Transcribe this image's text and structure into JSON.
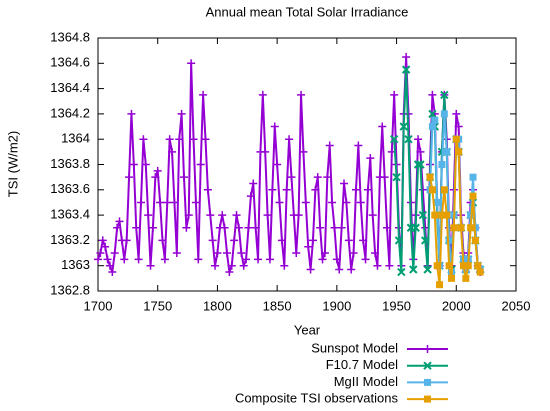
{
  "chart_data": {
    "type": "line",
    "title": "Annual mean Total Solar Irradiance",
    "xlabel": "Year",
    "ylabel": "TSI (W/m2)",
    "xlim": [
      1700,
      2050
    ],
    "xticks": [
      1700,
      1750,
      1800,
      1850,
      1900,
      1950,
      2000,
      2050
    ],
    "ylim": [
      1362.8,
      1364.8
    ],
    "yticks": [
      1362.8,
      1363,
      1363.2,
      1363.4,
      1363.6,
      1363.8,
      1364,
      1364.2,
      1364.4,
      1364.6,
      1364.8
    ],
    "grid": false,
    "series": [
      {
        "name": "Sunspot Model",
        "color": "#9400d3",
        "marker": "plus",
        "x": [
          1700,
          1702,
          1704,
          1706,
          1708,
          1710,
          1712,
          1714,
          1716,
          1718,
          1720,
          1722,
          1724,
          1726,
          1728,
          1730,
          1732,
          1734,
          1736,
          1738,
          1740,
          1742,
          1744,
          1746,
          1748,
          1750,
          1752,
          1754,
          1756,
          1758,
          1760,
          1762,
          1764,
          1766,
          1768,
          1770,
          1772,
          1774,
          1776,
          1778,
          1780,
          1782,
          1784,
          1786,
          1788,
          1790,
          1792,
          1794,
          1796,
          1798,
          1800,
          1802,
          1804,
          1806,
          1808,
          1810,
          1812,
          1814,
          1816,
          1818,
          1820,
          1822,
          1824,
          1826,
          1828,
          1830,
          1832,
          1834,
          1836,
          1838,
          1840,
          1842,
          1844,
          1846,
          1848,
          1850,
          1852,
          1854,
          1856,
          1858,
          1860,
          1862,
          1864,
          1866,
          1868,
          1870,
          1872,
          1874,
          1876,
          1878,
          1880,
          1882,
          1884,
          1886,
          1888,
          1890,
          1892,
          1894,
          1896,
          1898,
          1900,
          1902,
          1904,
          1906,
          1908,
          1910,
          1912,
          1914,
          1916,
          1918,
          1920,
          1922,
          1924,
          1926,
          1928,
          1930,
          1932,
          1934,
          1936,
          1938,
          1940,
          1942,
          1944,
          1946,
          1948,
          1950,
          1952,
          1954,
          1956,
          1958,
          1960,
          1962,
          1964,
          1966,
          1968,
          1970,
          1972,
          1974,
          1976,
          1978,
          1980,
          1982,
          1984,
          1986,
          1988,
          1990,
          1992,
          1994,
          1996,
          1998,
          2000,
          2002,
          2004,
          2006,
          2008,
          2010,
          2012,
          2014,
          2016,
          2018,
          2020
        ],
        "values": [
          1363.05,
          1363.1,
          1363.2,
          1363.15,
          1363.05,
          1363.0,
          1362.95,
          1363.1,
          1363.3,
          1363.35,
          1363.2,
          1363.05,
          1363.2,
          1363.7,
          1364.2,
          1363.8,
          1363.3,
          1363.05,
          1363.5,
          1364.0,
          1363.8,
          1363.4,
          1363.0,
          1363.3,
          1363.7,
          1363.75,
          1363.5,
          1363.2,
          1363.05,
          1363.5,
          1364.0,
          1363.9,
          1363.5,
          1363.1,
          1364.0,
          1364.2,
          1363.7,
          1363.3,
          1363.4,
          1364.6,
          1364.0,
          1363.5,
          1363.05,
          1363.8,
          1364.35,
          1364.0,
          1363.6,
          1363.4,
          1363.2,
          1363.0,
          1363.1,
          1363.3,
          1363.4,
          1363.3,
          1363.1,
          1362.95,
          1363.0,
          1363.2,
          1363.4,
          1363.3,
          1363.1,
          1363.0,
          1363.05,
          1363.3,
          1363.55,
          1363.65,
          1363.3,
          1363.05,
          1363.9,
          1364.35,
          1363.9,
          1363.4,
          1363.05,
          1363.6,
          1364.1,
          1363.8,
          1363.5,
          1363.2,
          1363.0,
          1363.6,
          1364.0,
          1363.7,
          1363.4,
          1363.1,
          1363.4,
          1364.35,
          1363.9,
          1363.5,
          1363.15,
          1362.97,
          1363.2,
          1363.6,
          1363.7,
          1363.3,
          1363.05,
          1363.1,
          1363.7,
          1363.95,
          1363.5,
          1363.3,
          1363.05,
          1362.97,
          1363.3,
          1363.65,
          1363.5,
          1363.2,
          1362.97,
          1363.1,
          1363.6,
          1363.95,
          1363.5,
          1363.2,
          1363.05,
          1363.6,
          1363.85,
          1363.4,
          1363.1,
          1363.0,
          1363.7,
          1364.1,
          1363.7,
          1363.3,
          1363.0,
          1363.9,
          1364.35,
          1363.8,
          1363.3,
          1363.0,
          1364.2,
          1364.65,
          1364.2,
          1363.5,
          1363.05,
          1363.4,
          1364.0,
          1363.9,
          1363.6,
          1363.3,
          1363.0,
          1363.8,
          1364.35,
          1364.2,
          1363.5,
          1363.0,
          1363.9,
          1364.35,
          1364.0,
          1363.3,
          1363.0,
          1363.6,
          1364.2,
          1364.1,
          1363.4,
          1363.1,
          1362.95,
          1363.1,
          1363.5,
          1363.6,
          1363.3,
          1363.0,
          1362.95
        ]
      },
      {
        "name": "F10.7 Model",
        "color": "#009e73",
        "marker": "cross",
        "x": [
          1948,
          1950,
          1952,
          1954,
          1956,
          1958,
          1960,
          1962,
          1964,
          1966,
          1968,
          1970,
          1972,
          1974,
          1976,
          1978,
          1980,
          1982,
          1984,
          1986,
          1988,
          1990,
          1992,
          1994,
          1996,
          1998,
          2000,
          2002,
          2004,
          2006,
          2008,
          2010,
          2012,
          2014,
          2016,
          2018,
          2020
        ],
        "values": [
          1364.0,
          1363.7,
          1363.2,
          1362.95,
          1364.1,
          1364.55,
          1364.0,
          1363.3,
          1362.97,
          1363.3,
          1363.8,
          1363.8,
          1363.4,
          1363.2,
          1362.97,
          1363.7,
          1364.2,
          1364.1,
          1363.4,
          1363.0,
          1363.9,
          1364.35,
          1363.9,
          1363.2,
          1362.97,
          1363.4,
          1364.0,
          1363.9,
          1363.3,
          1363.05,
          1362.97,
          1363.05,
          1363.4,
          1363.5,
          1363.2,
          1363.0,
          1362.97
        ]
      },
      {
        "name": "MgII Model",
        "color": "#56b4e9",
        "marker": "square",
        "x": [
          1978,
          1980,
          1982,
          1984,
          1986,
          1988,
          1990,
          1992,
          1994,
          1996,
          1998,
          2000,
          2002,
          2004,
          2006,
          2008,
          2010,
          2012,
          2014,
          2016,
          2018,
          2020
        ],
        "values": [
          1363.6,
          1364.1,
          1364.15,
          1363.5,
          1363.0,
          1363.8,
          1364.2,
          1363.9,
          1363.2,
          1362.95,
          1363.4,
          1364.0,
          1364.0,
          1363.3,
          1363.05,
          1362.97,
          1363.05,
          1363.4,
          1363.7,
          1363.3,
          1363.0,
          1362.97
        ]
      },
      {
        "name": "Composite TSI observations",
        "color": "#e69f00",
        "marker": "square",
        "x": [
          1978,
          1980,
          1982,
          1984,
          1986,
          1988,
          1990,
          1992,
          1994,
          1996,
          1998,
          2000,
          2002,
          2004,
          2006,
          2008,
          2010,
          2012,
          2014,
          2016,
          2018,
          2020
        ],
        "values": [
          1363.7,
          1363.6,
          1363.4,
          1363.0,
          1362.85,
          1363.4,
          1363.6,
          1363.4,
          1363.0,
          1362.9,
          1363.3,
          1364.0,
          1363.9,
          1363.3,
          1363.0,
          1362.9,
          1363.0,
          1363.3,
          1363.55,
          1363.2,
          1363.0,
          1362.95
        ]
      }
    ]
  }
}
